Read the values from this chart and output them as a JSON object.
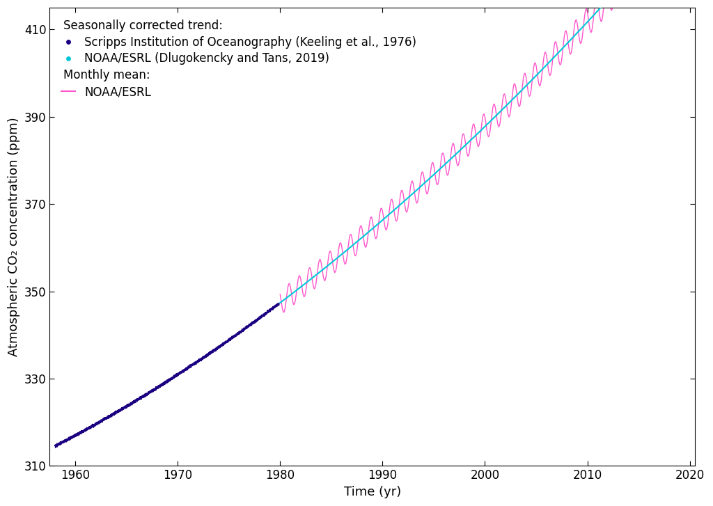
{
  "xlabel": "Time (yr)",
  "ylabel": "Atmospheric CO₂ concentration (ppm)",
  "xlim": [
    1957.5,
    2020.5
  ],
  "ylim": [
    310,
    415
  ],
  "yticks": [
    310,
    330,
    350,
    370,
    390,
    410
  ],
  "xticks": [
    1960,
    1970,
    1980,
    1990,
    2000,
    2010,
    2020
  ],
  "scripps_color": "#1a0080",
  "noaa_trend_color": "#00c8d8",
  "noaa_monthly_color": "#ff55cc",
  "legend_title_trend": "Seasonally corrected trend:",
  "legend_scripps_label": "Scripps Institution of Oceanography (Keeling et al., 1976)",
  "legend_noaa_trend_label": "NOAA/ESRL (Dlugokencky and Tans, 2019)",
  "legend_title_monthly": "Monthly mean:",
  "legend_noaa_monthly_label": "NOAA/ESRL",
  "font_size": 13,
  "tick_font_size": 12
}
